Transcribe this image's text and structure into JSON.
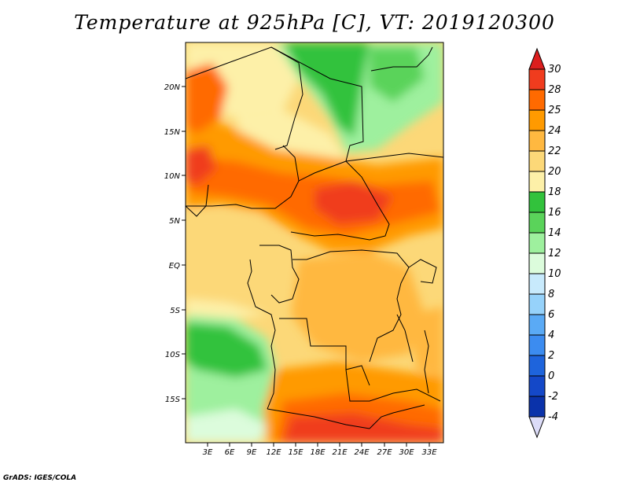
{
  "title": "Temperature at 925hPa [C], VT: 2019120300",
  "credit": "GrADS: IGES/COLA",
  "map": {
    "region": "Central Africa",
    "lat_labels": [
      "20N",
      "15N",
      "10N",
      "5N",
      "EQ",
      "5S",
      "10S",
      "15S"
    ],
    "lon_labels": [
      "3E",
      "6E",
      "9E",
      "12E",
      "15E",
      "18E",
      "21E",
      "24E",
      "27E",
      "30E",
      "33E"
    ]
  },
  "colorbar": {
    "labels": [
      "30",
      "28",
      "25",
      "24",
      "22",
      "20",
      "18",
      "16",
      "14",
      "12",
      "10",
      "8",
      "6",
      "4",
      "2",
      "0",
      "-2",
      "-4"
    ],
    "colors": [
      "#f03c1e",
      "#ff6a00",
      "#ff9a00",
      "#ffb840",
      "#fcd878",
      "#fdf0a8",
      "#32c23c",
      "#5ad35a",
      "#9ef09e",
      "#dcfcdc",
      "#c8eafc",
      "#96d2fa",
      "#5aaaf5",
      "#3c8cf0",
      "#1e64dc",
      "#1448c8",
      "#0a32aa",
      "#0a0a78"
    ],
    "top_color": "#dc1e1e",
    "bottom_color": "#dcdcf8"
  }
}
